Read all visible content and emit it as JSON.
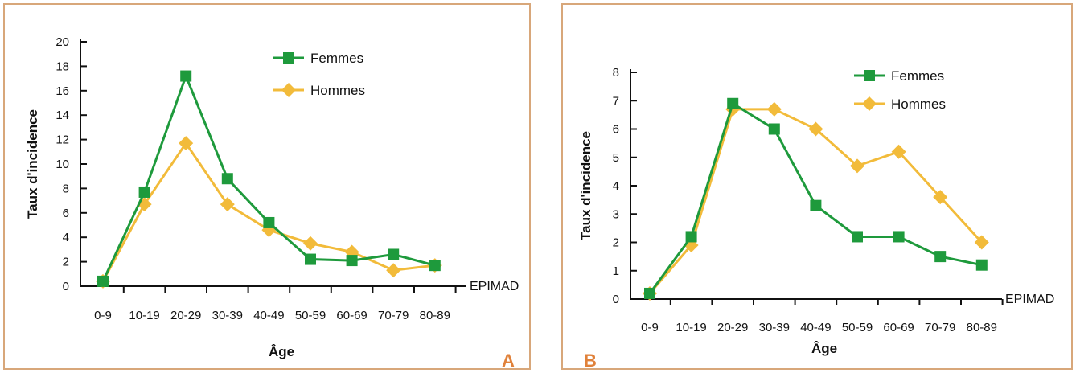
{
  "colors": {
    "femmes": "#1e9a3c",
    "hommes": "#f2bb3a",
    "frame": "#d8a77a",
    "letter": "#e0813a"
  },
  "chart_data": [
    {
      "type": "line",
      "panel": "A",
      "source": "EPIMAD",
      "xlabel": "Âge",
      "ylabel": "Taux d'incidence",
      "categories": [
        "0-9",
        "10-19",
        "20-29",
        "30-39",
        "40-49",
        "50-59",
        "60-69",
        "70-79",
        "80-89"
      ],
      "ylim": [
        0,
        20
      ],
      "yticks": [
        0,
        2,
        4,
        6,
        8,
        10,
        12,
        14,
        16,
        18,
        20
      ],
      "legend_position": "top-right",
      "series": [
        {
          "name": "Femmes",
          "marker": "square",
          "values": [
            0.4,
            7.7,
            17.2,
            8.8,
            5.2,
            2.2,
            2.1,
            2.6,
            1.7
          ]
        },
        {
          "name": "Hommes",
          "marker": "diamond",
          "values": [
            0.4,
            6.7,
            11.7,
            6.7,
            4.6,
            3.5,
            2.8,
            1.3,
            1.7
          ]
        }
      ]
    },
    {
      "type": "line",
      "panel": "B",
      "source": "EPIMAD",
      "xlabel": "Âge",
      "ylabel": "Taux d'incidence",
      "categories": [
        "0-9",
        "10-19",
        "20-29",
        "30-39",
        "40-49",
        "50-59",
        "60-69",
        "70-79",
        "80-89"
      ],
      "ylim": [
        0,
        8
      ],
      "yticks": [
        0,
        1,
        2,
        3,
        4,
        5,
        6,
        7,
        8
      ],
      "legend_position": "top-right",
      "series": [
        {
          "name": "Femmes",
          "marker": "square",
          "values": [
            0.2,
            2.2,
            6.9,
            6.0,
            3.3,
            2.2,
            2.2,
            1.5,
            1.2
          ]
        },
        {
          "name": "Hommes",
          "marker": "diamond",
          "values": [
            0.2,
            1.9,
            6.7,
            6.7,
            6.0,
            4.7,
            5.2,
            3.6,
            2.0
          ]
        }
      ]
    }
  ]
}
